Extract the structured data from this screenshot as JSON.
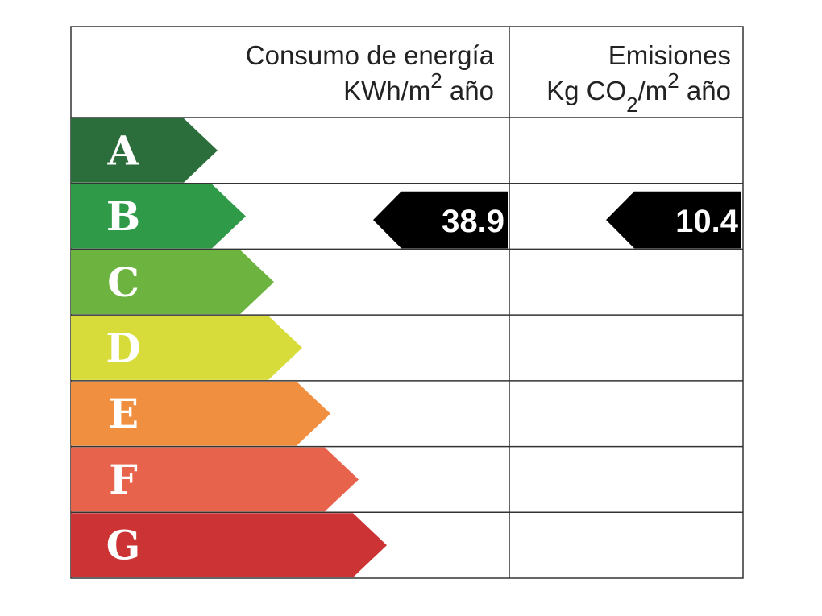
{
  "header": {
    "energy": {
      "title": "Consumo de energía",
      "unit": [
        {
          "text": "KWh/m"
        },
        {
          "text": "2",
          "pos": "super"
        },
        {
          "text": " año"
        }
      ]
    },
    "emissions": {
      "title": "Emisiones",
      "unit": [
        {
          "text": "Kg CO"
        },
        {
          "text": "2",
          "pos": "sub"
        },
        {
          "text": "/m"
        },
        {
          "text": "2",
          "pos": "super"
        },
        {
          "text": " año"
        }
      ]
    }
  },
  "rows": [
    {
      "letter": "A",
      "color": "#2b6e3b"
    },
    {
      "letter": "B",
      "color": "#2f9a47"
    },
    {
      "letter": "C",
      "color": "#6cb33f"
    },
    {
      "letter": "D",
      "color": "#d8dc3a"
    },
    {
      "letter": "E",
      "color": "#f08f3f"
    },
    {
      "letter": "F",
      "color": "#e8634b"
    },
    {
      "letter": "G",
      "color": "#cb3334"
    }
  ],
  "ratings": {
    "energy": {
      "class": "B",
      "value": 38.9
    },
    "emissions": {
      "class": "B",
      "value": 10.4
    }
  }
}
